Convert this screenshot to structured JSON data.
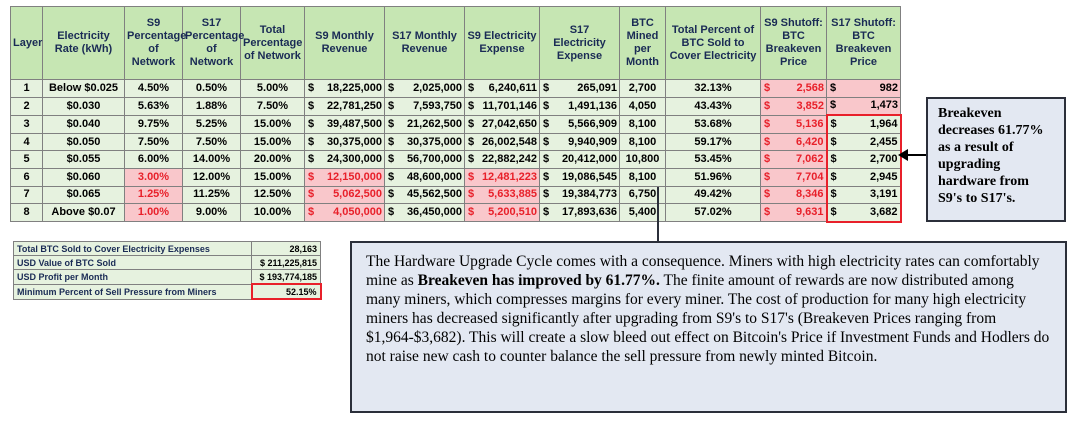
{
  "headers": [
    "Layer",
    "Electricity Rate (kWh)",
    "S9 Percentage of Network",
    "S17 Percentage of Network",
    "Total Percentage of Network",
    "S9 Monthly Revenue",
    "S17 Monthly Revenue",
    "S9 Electricity Expense",
    "S17 Electricity Expense",
    "BTC Mined per Month",
    "Total Percent of BTC Sold to Cover Electricity",
    "S9 Shutoff: BTC Breakeven Price",
    "S17 Shutoff: BTC Breakeven Price"
  ],
  "rows": [
    {
      "layer": "1",
      "rate": "Below $0.025",
      "s9pct": "4.50%",
      "s17pct": "0.50%",
      "totpct": "5.00%",
      "s9rev": "18,225,000",
      "s17rev": "2,025,000",
      "s9exp": "6,240,611",
      "s17exp": "265,091",
      "btc": "2,700",
      "sold": "32.13%",
      "s9be": "2,568",
      "s17be": "982"
    },
    {
      "layer": "2",
      "rate": "$0.030",
      "s9pct": "5.63%",
      "s17pct": "1.88%",
      "totpct": "7.50%",
      "s9rev": "22,781,250",
      "s17rev": "7,593,750",
      "s9exp": "11,701,146",
      "s17exp": "1,491,136",
      "btc": "4,050",
      "sold": "43.43%",
      "s9be": "3,852",
      "s17be": "1,473"
    },
    {
      "layer": "3",
      "rate": "$0.040",
      "s9pct": "9.75%",
      "s17pct": "5.25%",
      "totpct": "15.00%",
      "s9rev": "39,487,500",
      "s17rev": "21,262,500",
      "s9exp": "27,042,650",
      "s17exp": "5,566,909",
      "btc": "8,100",
      "sold": "53.68%",
      "s9be": "5,136",
      "s17be": "1,964"
    },
    {
      "layer": "4",
      "rate": "$0.050",
      "s9pct": "7.50%",
      "s17pct": "7.50%",
      "totpct": "15.00%",
      "s9rev": "30,375,000",
      "s17rev": "30,375,000",
      "s9exp": "26,002,548",
      "s17exp": "9,940,909",
      "btc": "8,100",
      "sold": "59.17%",
      "s9be": "6,420",
      "s17be": "2,455"
    },
    {
      "layer": "5",
      "rate": "$0.055",
      "s9pct": "6.00%",
      "s17pct": "14.00%",
      "totpct": "20.00%",
      "s9rev": "24,300,000",
      "s17rev": "56,700,000",
      "s9exp": "22,882,242",
      "s17exp": "20,412,000",
      "btc": "10,800",
      "sold": "53.45%",
      "s9be": "7,062",
      "s17be": "2,700"
    },
    {
      "layer": "6",
      "rate": "$0.060",
      "s9pct": "3.00%",
      "s17pct": "12.00%",
      "totpct": "15.00%",
      "s9rev": "12,150,000",
      "s17rev": "48,600,000",
      "s9exp": "12,481,223",
      "s17exp": "19,086,545",
      "btc": "8,100",
      "sold": "51.96%",
      "s9be": "7,704",
      "s17be": "2,945"
    },
    {
      "layer": "7",
      "rate": "$0.065",
      "s9pct": "1.25%",
      "s17pct": "11.25%",
      "totpct": "12.50%",
      "s9rev": "5,062,500",
      "s17rev": "45,562,500",
      "s9exp": "5,633,885",
      "s17exp": "19,384,773",
      "btc": "6,750",
      "sold": "49.42%",
      "s9be": "8,346",
      "s17be": "3,191"
    },
    {
      "layer": "8",
      "rate": "Above $0.07",
      "s9pct": "1.00%",
      "s17pct": "9.00%",
      "totpct": "10.00%",
      "s9rev": "4,050,000",
      "s17rev": "36,450,000",
      "s9exp": "5,200,510",
      "s17exp": "17,893,636",
      "btc": "5,400",
      "sold": "57.02%",
      "s9be": "9,631",
      "s17be": "3,682"
    }
  ],
  "currency_symbol": "$",
  "summary": [
    {
      "label": "Total BTC Sold to Cover Electricity Expenses",
      "value": "28,163"
    },
    {
      "label": "USD Value of BTC Sold",
      "value": "$ 211,225,815"
    },
    {
      "label": "USD Profit per Month",
      "value": "$ 193,774,185"
    },
    {
      "label": "Minimum Percent of Sell Pressure from Miners",
      "value": "52.15%"
    }
  ],
  "callout": "Breakeven decreases 61.77% as a result of upgrading hardware from S9's to S17's.",
  "textbox": {
    "part1": "The Hardware Upgrade Cycle comes with a consequence. Miners with high electricity rates can comfortably mine as ",
    "bold": "Breakeven has improved by 61.77%.",
    "part2": " The finite amount of rewards are now distributed among many miners, which compresses margins for every miner. The cost of production for many high electricity miners has decreased significantly after upgrading from S9's to S17's (Breakeven Prices ranging from $1,964-$3,682). This will create a slow bleed out effect on Bitcoin's Price if Investment Funds and Hodlers do not raise new cash to counter balance the sell pressure from newly minted Bitcoin."
  },
  "colors": {
    "header_bg": "#c6e6b3",
    "cell_bg": "#e6f2df",
    "pink": "#f9c7cb",
    "red": "#e8202a",
    "box_bg": "#e3e8f2"
  }
}
